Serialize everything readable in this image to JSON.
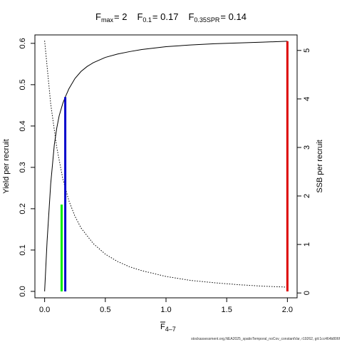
{
  "chart_data": {
    "type": "line",
    "title_parts": [
      {
        "base": "F",
        "sub": "max",
        "value": "= 2"
      },
      {
        "base": "F",
        "sub": "0.1",
        "value": "= 0.17"
      },
      {
        "base": "F",
        "sub": "0.35SPR",
        "value": "= 0.14"
      }
    ],
    "xlabel": {
      "base": "F",
      "sub": "4–7"
    },
    "ylabel_left": "Yield per recruit",
    "ylabel_right": "SSB per recruit",
    "xlim": [
      0,
      2
    ],
    "ylim_left": [
      0,
      0.6
    ],
    "ylim_right": [
      0,
      5
    ],
    "x_ticks": [
      "0.0",
      "0.5",
      "1.0",
      "1.5",
      "2.0"
    ],
    "y_ticks_left": [
      "0.0",
      "0.1",
      "0.2",
      "0.3",
      "0.4",
      "0.5",
      "0.6"
    ],
    "y_ticks_right": [
      "0",
      "1",
      "2",
      "3",
      "4",
      "5"
    ],
    "series": [
      {
        "axis": "left",
        "style": "solid",
        "color": "#000000",
        "x": [
          0,
          0.02,
          0.05,
          0.08,
          0.1,
          0.12,
          0.15,
          0.17,
          0.2,
          0.25,
          0.3,
          0.35,
          0.4,
          0.5,
          0.6,
          0.7,
          0.8,
          1.0,
          1.2,
          1.4,
          1.6,
          1.8,
          2.0
        ],
        "values": [
          0,
          0.12,
          0.26,
          0.355,
          0.395,
          0.425,
          0.455,
          0.47,
          0.49,
          0.515,
          0.532,
          0.544,
          0.553,
          0.566,
          0.574,
          0.58,
          0.585,
          0.592,
          0.596,
          0.599,
          0.601,
          0.603,
          0.605
        ]
      },
      {
        "axis": "right",
        "style": "dotted",
        "color": "#000000",
        "x": [
          0,
          0.05,
          0.1,
          0.15,
          0.2,
          0.25,
          0.3,
          0.4,
          0.5,
          0.6,
          0.7,
          0.8,
          1.0,
          1.2,
          1.4,
          1.6,
          1.8,
          2.0
        ],
        "values": [
          5.2,
          3.9,
          3.0,
          2.35,
          1.9,
          1.58,
          1.34,
          1.02,
          0.8,
          0.65,
          0.54,
          0.46,
          0.34,
          0.26,
          0.21,
          0.17,
          0.14,
          0.12
        ]
      }
    ],
    "reference_lines": [
      {
        "name": "F0.35SPR",
        "x": 0.14,
        "y": 0.21,
        "color": "#00ee00"
      },
      {
        "name": "F0.1",
        "x": 0.17,
        "y": 0.47,
        "color": "#0000cc"
      },
      {
        "name": "Fmax",
        "x": 2.0,
        "y": 0.605,
        "color": "#dd0000"
      }
    ],
    "grid": false,
    "legend": "none"
  },
  "footer_text": "stockassessment.org,NEA2025_spatioTemporal_noCov_constantVar, r19262, git:1cc464b806f"
}
